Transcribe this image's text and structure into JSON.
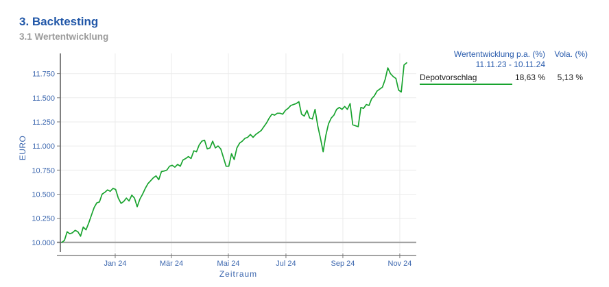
{
  "page": {
    "title": "3. Backtesting",
    "subtitle": "3.1 Wertentwicklung"
  },
  "colors": {
    "title_blue": "#2157a8",
    "subtitle_gray": "#9b9b9b",
    "axis_text_blue": "#3b66ae",
    "legend_blue": "#2a5cad",
    "series_green": "#18a32e",
    "grid_gray": "#ebebeb",
    "axis_line_gray": "#a3a3a3",
    "y_axis_dark": "#4a4a4a",
    "text_black": "#1a1a1a"
  },
  "legend": {
    "col_performance_header": "Wertentwicklung p.a. (%)",
    "col_vola_header": "Vola. (%)",
    "period": "11.11.23 - 10.11.24",
    "rows": [
      {
        "name": "Depotvorschlag",
        "performance": "18,63 %",
        "vola": "5,13 %",
        "color": "#18a32e"
      }
    ]
  },
  "chart_data": {
    "type": "line",
    "ylabel": "EURO",
    "xlabel": "Zeitraum",
    "period": "11.11.23 - 10.11.24",
    "grid": true,
    "legend_position": "top-right",
    "baseline_value": 10000,
    "ylim_display": [
      9900,
      11960
    ],
    "y_ticks": [
      {
        "label": "10.000",
        "value": 10000
      },
      {
        "label": "10.250",
        "value": 10250
      },
      {
        "label": "10.500",
        "value": 10500
      },
      {
        "label": "10.750",
        "value": 10750
      },
      {
        "label": "11.000",
        "value": 11000
      },
      {
        "label": "11.250",
        "value": 11250
      },
      {
        "label": "11.500",
        "value": 11500
      },
      {
        "label": "11.750",
        "value": 11750
      }
    ],
    "x_ticks": [
      {
        "label": "Jan 24",
        "pos": 0.155
      },
      {
        "label": "Mär 24",
        "pos": 0.318
      },
      {
        "label": "Mai 24",
        "pos": 0.483
      },
      {
        "label": "Jul 24",
        "pos": 0.65
      },
      {
        "label": "Sep 24",
        "pos": 0.815
      },
      {
        "label": "Nov 24",
        "pos": 0.98
      }
    ],
    "series": [
      {
        "name": "Depotvorschlag",
        "color": "#18a32e",
        "performance_pa": "18,63 %",
        "vola": "5,13 %",
        "values_eur": [
          10000,
          10020,
          10110,
          10090,
          10100,
          10125,
          10110,
          10065,
          10160,
          10130,
          10200,
          10280,
          10360,
          10410,
          10420,
          10500,
          10520,
          10545,
          10530,
          10560,
          10550,
          10460,
          10405,
          10425,
          10460,
          10430,
          10490,
          10460,
          10370,
          10450,
          10500,
          10560,
          10610,
          10640,
          10670,
          10690,
          10650,
          10735,
          10740,
          10750,
          10790,
          10800,
          10780,
          10810,
          10790,
          10855,
          10870,
          10890,
          10870,
          10950,
          10940,
          11010,
          11050,
          11060,
          10970,
          10980,
          11050,
          10980,
          11000,
          10970,
          10880,
          10790,
          10790,
          10920,
          10860,
          10980,
          11030,
          11050,
          11080,
          11090,
          11120,
          11090,
          11120,
          11140,
          11160,
          11200,
          11240,
          11290,
          11330,
          11320,
          11340,
          11340,
          11330,
          11370,
          11390,
          11420,
          11430,
          11440,
          11460,
          11330,
          11310,
          11370,
          11290,
          11280,
          11380,
          11210,
          11080,
          10940,
          11110,
          11230,
          11290,
          11320,
          11380,
          11400,
          11380,
          11410,
          11380,
          11440,
          11220,
          11210,
          11200,
          11400,
          11390,
          11430,
          11420,
          11490,
          11520,
          11570,
          11590,
          11610,
          11690,
          11810,
          11750,
          11720,
          11700,
          11580,
          11560,
          11840,
          11863
        ]
      }
    ]
  }
}
